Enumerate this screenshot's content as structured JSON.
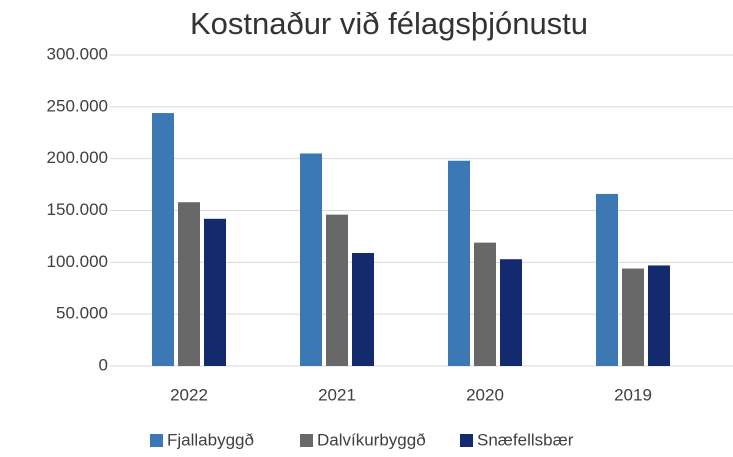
{
  "chart_data": {
    "type": "bar",
    "title": "Kostnaður við félagsþjónustu",
    "categories": [
      "2022",
      "2021",
      "2020",
      "2019"
    ],
    "series": [
      {
        "name": "Fjallabyggð",
        "color": "#3c78b4",
        "values": [
          244000,
          205000,
          198000,
          166000
        ]
      },
      {
        "name": "Dalvíkurbyggð",
        "color": "#686868",
        "values": [
          158000,
          146000,
          119000,
          94000
        ]
      },
      {
        "name": "Snæfellsbær",
        "color": "#142a6e",
        "values": [
          142000,
          109000,
          103000,
          97000
        ]
      }
    ],
    "ylim": [
      0,
      300000
    ],
    "yticks": [
      0,
      {
        "value": 50000,
        "label": "50.000"
      },
      {
        "value": 100000,
        "label": "100.000"
      },
      {
        "value": 150000,
        "label": "150.000"
      },
      {
        "value": 200000,
        "label": "200.000"
      },
      {
        "value": 250000,
        "label": "250.000"
      },
      {
        "value": 300000,
        "label": "300.000"
      }
    ],
    "grid": true,
    "legend": "bottom"
  }
}
